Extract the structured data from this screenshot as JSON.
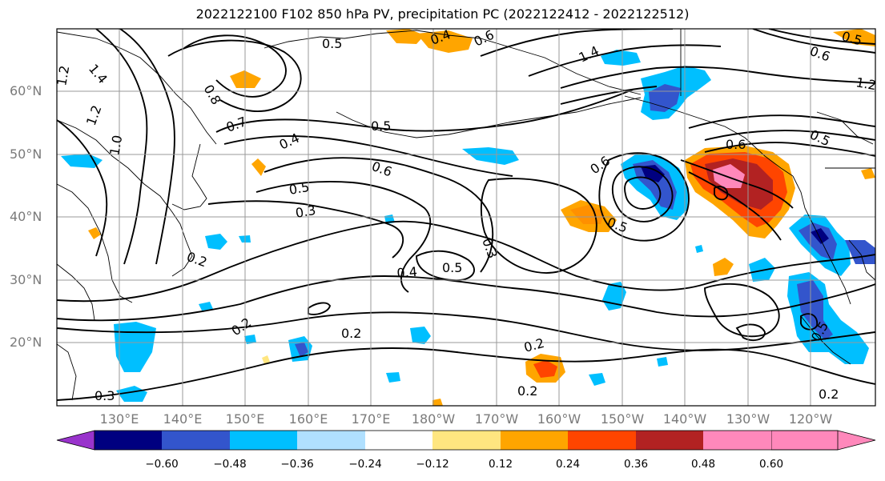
{
  "title": "2022122100 F102 850 hPa PV, precipitation PC (2022122412 - 2022122512)",
  "lat_labels": [
    "60°N",
    "50°N",
    "40°N",
    "30°N",
    "20°N"
  ],
  "lon_labels": [
    "130°E",
    "140°E",
    "150°E",
    "160°E",
    "170°E",
    "180°W",
    "170°W",
    "160°W",
    "150°W",
    "140°W",
    "130°W",
    "120°W"
  ],
  "colorbar": {
    "ticks": [
      "−0.60",
      "−0.48",
      "−0.36",
      "−0.24",
      "−0.12",
      "0.12",
      "0.24",
      "0.36",
      "0.48",
      "0.60"
    ],
    "colors": [
      "#9933cc",
      "#000080",
      "#3355cc",
      "#00bfff",
      "#b0e0ff",
      "#ffffff",
      "#ffe680",
      "#ffa500",
      "#ff4500",
      "#b22222",
      "#ff88bb"
    ]
  },
  "contour_labels": [
    "0.5",
    "0.4",
    "0.6",
    "1.4",
    "0.7",
    "0.5",
    "0.4",
    "0.6",
    "0.5",
    "0.3",
    "0.2",
    "0.4",
    "0.5",
    "0.3",
    "0.2",
    "0.2",
    "0.2",
    "0.2",
    "0.3",
    "0.6",
    "0.5",
    "0.6",
    "1.2",
    "1.0",
    "1.2",
    "1.4",
    "0.5",
    "0.5",
    "0.6",
    "0.8",
    "0.5",
    "1.2",
    "0.2"
  ]
}
